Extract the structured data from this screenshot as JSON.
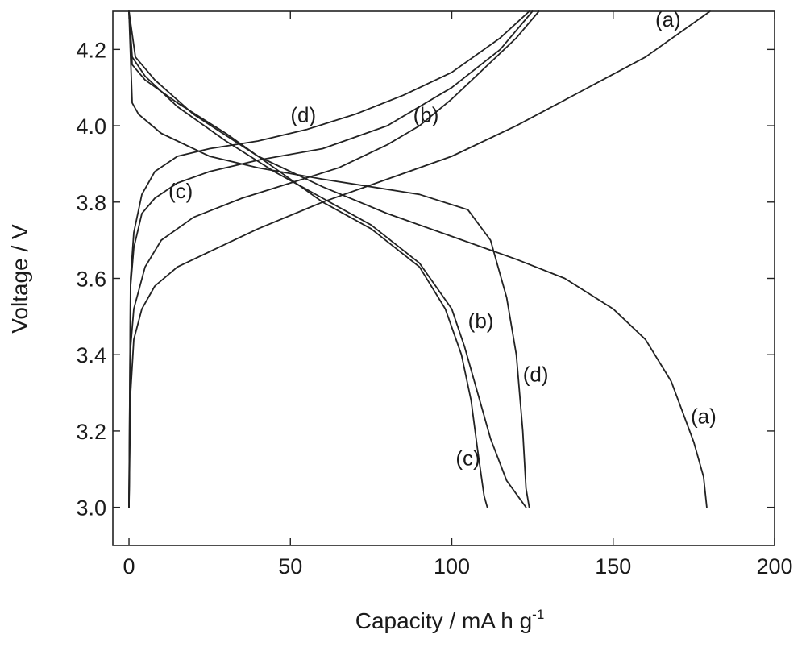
{
  "chart_data": {
    "type": "line",
    "xlabel": "Capacity / mA h g",
    "xlabel_sup": "-1",
    "ylabel": "Voltage / V",
    "xlim": [
      -5,
      200
    ],
    "ylim": [
      2.9,
      4.3
    ],
    "xticks": [
      0,
      50,
      100,
      150,
      200
    ],
    "yticks": [
      3.0,
      3.2,
      3.4,
      3.6,
      3.8,
      4.0,
      4.2
    ],
    "ytick_labels": [
      "3.0",
      "3.2",
      "3.4",
      "3.6",
      "3.8",
      "4.0",
      "4.2"
    ],
    "grid": false,
    "series": [
      {
        "name": "(a)",
        "segment": "charge",
        "points": [
          [
            0,
            3.0
          ],
          [
            0.5,
            3.3
          ],
          [
            1.5,
            3.44
          ],
          [
            4,
            3.52
          ],
          [
            8,
            3.58
          ],
          [
            15,
            3.63
          ],
          [
            25,
            3.67
          ],
          [
            40,
            3.73
          ],
          [
            60,
            3.8
          ],
          [
            80,
            3.86
          ],
          [
            100,
            3.92
          ],
          [
            120,
            4.0
          ],
          [
            140,
            4.09
          ],
          [
            160,
            4.18
          ],
          [
            180,
            4.3
          ]
        ]
      },
      {
        "name": "(b)",
        "segment": "charge",
        "points": [
          [
            0,
            3.0
          ],
          [
            0.5,
            3.42
          ],
          [
            1.5,
            3.52
          ],
          [
            5,
            3.63
          ],
          [
            10,
            3.7
          ],
          [
            20,
            3.76
          ],
          [
            35,
            3.81
          ],
          [
            50,
            3.85
          ],
          [
            65,
            3.89
          ],
          [
            80,
            3.95
          ],
          [
            90,
            4.0
          ],
          [
            100,
            4.07
          ],
          [
            110,
            4.15
          ],
          [
            120,
            4.23
          ],
          [
            127,
            4.3
          ]
        ]
      },
      {
        "name": "(c)",
        "segment": "charge",
        "points": [
          [
            0,
            3.0
          ],
          [
            0.5,
            3.58
          ],
          [
            1.5,
            3.68
          ],
          [
            4,
            3.77
          ],
          [
            8,
            3.81
          ],
          [
            15,
            3.85
          ],
          [
            25,
            3.88
          ],
          [
            40,
            3.91
          ],
          [
            60,
            3.94
          ],
          [
            80,
            4.0
          ],
          [
            100,
            4.1
          ],
          [
            115,
            4.2
          ],
          [
            125,
            4.3
          ]
        ]
      },
      {
        "name": "(d)",
        "segment": "charge",
        "points": [
          [
            0,
            3.0
          ],
          [
            0.5,
            3.6
          ],
          [
            1.5,
            3.72
          ],
          [
            4,
            3.82
          ],
          [
            8,
            3.88
          ],
          [
            15,
            3.92
          ],
          [
            25,
            3.94
          ],
          [
            40,
            3.96
          ],
          [
            55,
            3.99
          ],
          [
            70,
            4.03
          ],
          [
            85,
            4.08
          ],
          [
            100,
            4.14
          ],
          [
            115,
            4.23
          ],
          [
            124,
            4.3
          ]
        ]
      },
      {
        "name": "(a)",
        "segment": "discharge",
        "points": [
          [
            0,
            4.3
          ],
          [
            2,
            4.18
          ],
          [
            8,
            4.12
          ],
          [
            20,
            4.03
          ],
          [
            40,
            3.92
          ],
          [
            60,
            3.84
          ],
          [
            80,
            3.77
          ],
          [
            100,
            3.71
          ],
          [
            120,
            3.65
          ],
          [
            135,
            3.6
          ],
          [
            150,
            3.52
          ],
          [
            160,
            3.44
          ],
          [
            168,
            3.33
          ],
          [
            175,
            3.17
          ],
          [
            178,
            3.08
          ],
          [
            179,
            3.0
          ]
        ]
      },
      {
        "name": "(b)",
        "segment": "discharge",
        "points": [
          [
            0,
            4.3
          ],
          [
            1,
            4.18
          ],
          [
            5,
            4.13
          ],
          [
            15,
            4.05
          ],
          [
            30,
            3.96
          ],
          [
            45,
            3.88
          ],
          [
            60,
            3.81
          ],
          [
            75,
            3.74
          ],
          [
            90,
            3.64
          ],
          [
            100,
            3.52
          ],
          [
            104,
            3.42
          ],
          [
            108,
            3.3
          ],
          [
            112,
            3.18
          ],
          [
            117,
            3.07
          ],
          [
            123,
            3.0
          ]
        ]
      },
      {
        "name": "(c)",
        "segment": "discharge",
        "points": [
          [
            0,
            4.3
          ],
          [
            1,
            4.16
          ],
          [
            5,
            4.12
          ],
          [
            15,
            4.06
          ],
          [
            30,
            3.98
          ],
          [
            45,
            3.89
          ],
          [
            60,
            3.8
          ],
          [
            75,
            3.73
          ],
          [
            90,
            3.63
          ],
          [
            98,
            3.52
          ],
          [
            103,
            3.4
          ],
          [
            106,
            3.28
          ],
          [
            108,
            3.15
          ],
          [
            110,
            3.03
          ],
          [
            111,
            3.0
          ]
        ]
      },
      {
        "name": "(d)",
        "segment": "discharge",
        "points": [
          [
            0,
            4.3
          ],
          [
            1,
            4.06
          ],
          [
            3,
            4.03
          ],
          [
            10,
            3.98
          ],
          [
            25,
            3.92
          ],
          [
            40,
            3.89
          ],
          [
            60,
            3.86
          ],
          [
            75,
            3.84
          ],
          [
            90,
            3.82
          ],
          [
            105,
            3.78
          ],
          [
            112,
            3.7
          ],
          [
            117,
            3.55
          ],
          [
            120,
            3.4
          ],
          [
            122,
            3.2
          ],
          [
            123,
            3.05
          ],
          [
            124,
            3.0
          ]
        ]
      }
    ],
    "annotations": [
      {
        "text": "(a)",
        "x": 167,
        "y": 4.26
      },
      {
        "text": "(b)",
        "x": 92,
        "y": 4.01
      },
      {
        "text": "(d)",
        "x": 54,
        "y": 4.01
      },
      {
        "text": "(c)",
        "x": 16,
        "y": 3.81
      },
      {
        "text": "(b)",
        "x": 109,
        "y": 3.47
      },
      {
        "text": "(d)",
        "x": 126,
        "y": 3.33
      },
      {
        "text": "(a)",
        "x": 178,
        "y": 3.22
      },
      {
        "text": "(c)",
        "x": 105,
        "y": 3.11
      }
    ]
  }
}
